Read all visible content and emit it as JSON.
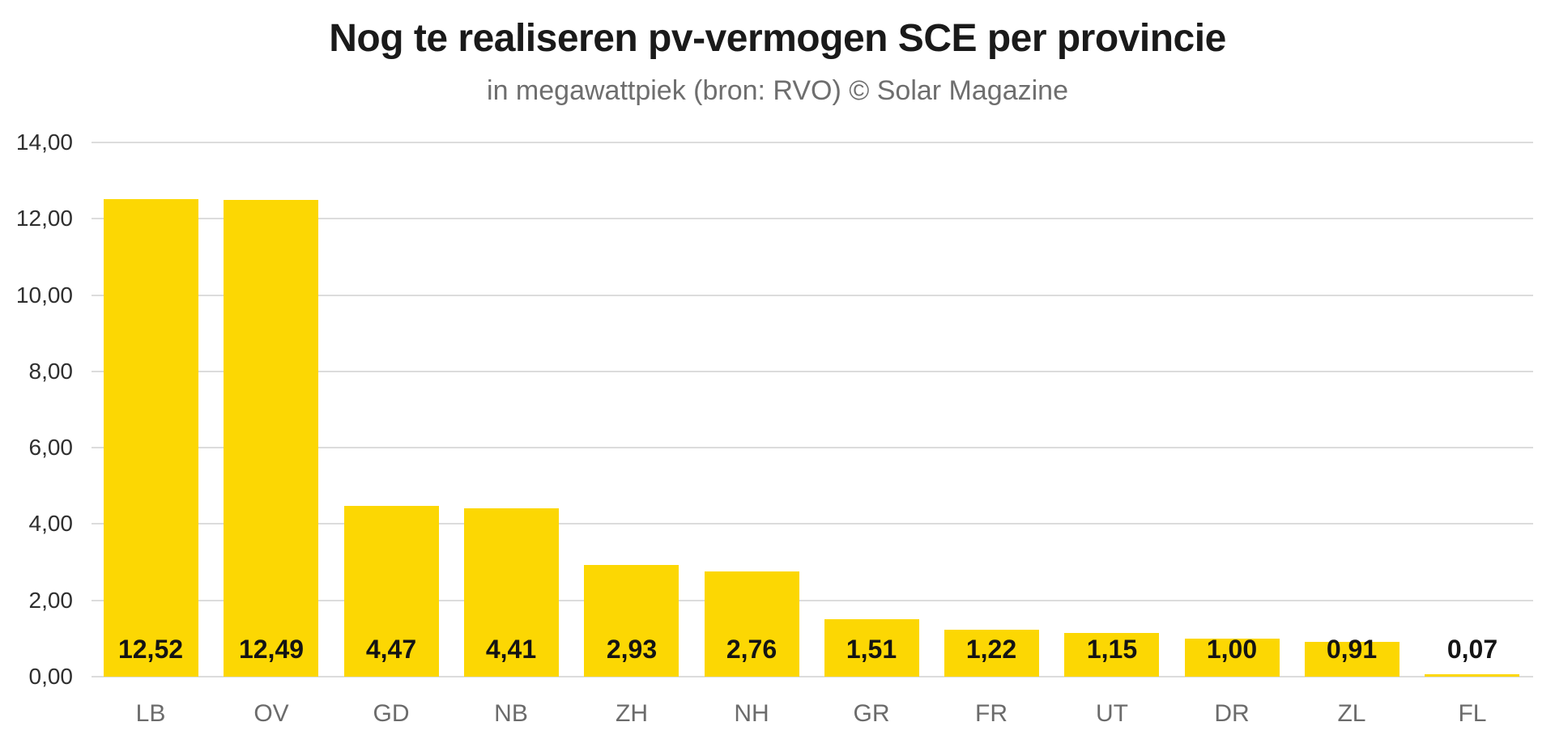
{
  "chart_data": {
    "type": "bar",
    "title": "Nog te realiseren pv-vermogen SCE per provincie",
    "subtitle": "in megawattpiek (bron: RVO) © Solar Magazine",
    "unit": "megawattpiek",
    "source": "bron: RVO © Solar Magazine",
    "categories": [
      "LB",
      "OV",
      "GD",
      "NB",
      "ZH",
      "NH",
      "GR",
      "FR",
      "UT",
      "DR",
      "ZL",
      "FL"
    ],
    "series": [
      {
        "name": "Nog te realiseren pv-vermogen SCE",
        "values": [
          12.52,
          12.49,
          4.47,
          4.41,
          2.93,
          2.76,
          1.51,
          1.22,
          1.15,
          1.0,
          0.91,
          0.07
        ],
        "value_labels": [
          "12,52",
          "12,49",
          "4,47",
          "4,41",
          "2,93",
          "2,76",
          "1,51",
          "1,22",
          "1,15",
          "1,00",
          "0,91",
          "0,07"
        ]
      }
    ],
    "xlabel": "",
    "ylabel": "",
    "ylim": [
      0,
      14
    ],
    "ytick_values": [
      0,
      2,
      4,
      6,
      8,
      10,
      12,
      14
    ],
    "ytick_labels": [
      "0,00",
      "2,00",
      "4,00",
      "6,00",
      "8,00",
      "10,00",
      "12,00",
      "14,00"
    ],
    "grid": "horizontal",
    "legend_position": "none",
    "colors": {
      "bar_fill": "#FCD703",
      "title": "#1a1a1a",
      "subtitle": "#6e6e6e",
      "ytick_label": "#2f2f2f",
      "xtick_label": "#6b6b6b",
      "value_label": "#141414",
      "gridline": "#dcdcdc",
      "background": "#ffffff"
    }
  }
}
